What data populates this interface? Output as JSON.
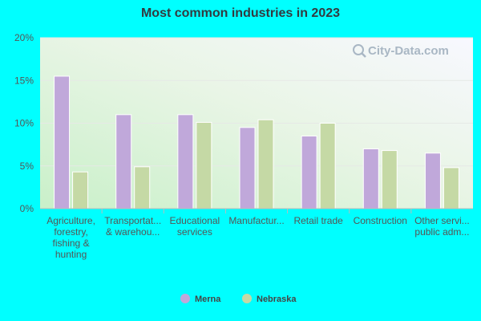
{
  "chart_data": {
    "type": "bar",
    "title": "Most common industries in 2023",
    "xlabel": "",
    "ylabel": "",
    "ylim": [
      0,
      20
    ],
    "yticks": [
      0,
      5,
      10,
      15,
      20
    ],
    "ytick_labels": [
      "0%",
      "5%",
      "10%",
      "15%",
      "20%"
    ],
    "categories": [
      [
        "Agriculture,",
        "forestry,",
        "fishing &",
        "hunting"
      ],
      [
        "Transportat...",
        "& warehou..."
      ],
      [
        "Educational",
        "services"
      ],
      [
        "Manufactur..."
      ],
      [
        "Retail trade"
      ],
      [
        "Construction"
      ],
      [
        "Other servi...",
        "public adm..."
      ]
    ],
    "series": [
      {
        "name": "Merna",
        "color": "#c0a8da",
        "values": [
          15.5,
          11.0,
          11.0,
          9.5,
          8.5,
          7.0,
          6.5
        ]
      },
      {
        "name": "Nebraska",
        "color": "#c5d9a5",
        "values": [
          4.3,
          4.9,
          10.1,
          10.4,
          10.0,
          6.8,
          4.8
        ]
      }
    ],
    "legend_position": "bottom",
    "watermark": "City-Data.com"
  }
}
